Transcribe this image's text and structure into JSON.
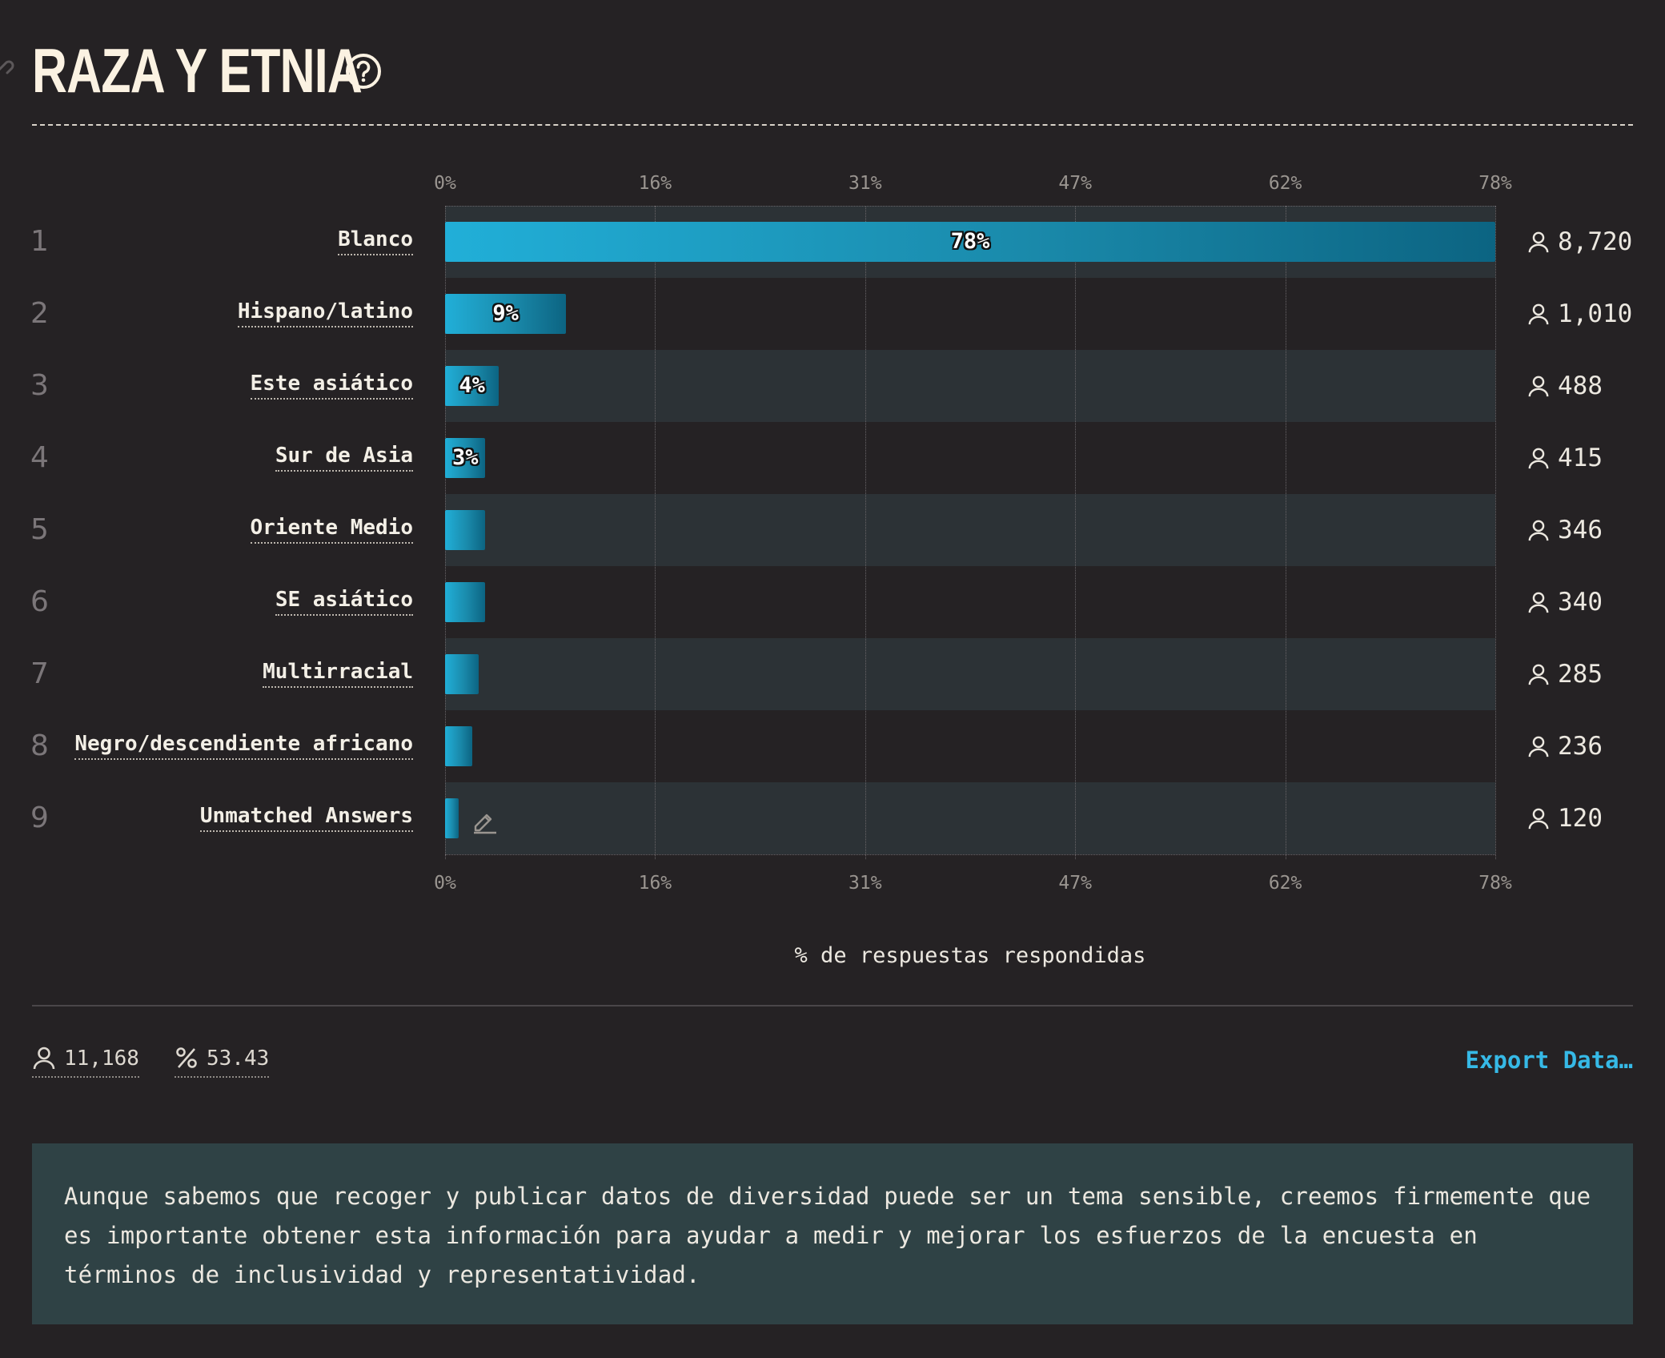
{
  "section": {
    "title": "RAZA Y ETNIA"
  },
  "chart_data": {
    "type": "bar",
    "orientation": "horizontal",
    "categories": [
      "Blanco",
      "Hispano/latino",
      "Este asiático",
      "Sur de Asia",
      "Oriente Medio",
      "SE asiático",
      "Multirracial",
      "Negro/descendiente africano",
      "Unmatched Answers"
    ],
    "values": [
      78,
      9,
      4,
      3,
      3,
      3,
      2.5,
      2,
      1
    ],
    "counts": [
      "8,720",
      "1,010",
      "488",
      "415",
      "346",
      "340",
      "285",
      "236",
      "120"
    ],
    "ranks": [
      "1",
      "2",
      "3",
      "4",
      "5",
      "6",
      "7",
      "8",
      "9"
    ],
    "bar_labels": [
      "78%",
      "9%",
      "4%",
      "3%",
      "",
      "",
      "",
      "",
      ""
    ],
    "xlim": [
      0,
      78
    ],
    "ticks": [
      "0%",
      "16%",
      "31%",
      "47%",
      "62%",
      "78%"
    ],
    "tick_values": [
      0,
      15.6,
      31.2,
      46.8,
      62.4,
      78
    ],
    "xlabel": "% de respuestas respondidas",
    "colors": {
      "bar_start": "#21afd8",
      "bar_end": "#0c6482",
      "row_band": "#2c3236"
    }
  },
  "footer": {
    "respondents": "11,168",
    "percentage": "53.43",
    "export_label": "Export Data…"
  },
  "note": {
    "text": "Aunque sabemos que recoger y publicar datos de diversidad puede ser un tema sensible, creemos firmemente que es importante obtener esta información para ayudar a medir y mejorar los esfuerzos de la encuesta en términos de inclusividad y representatividad."
  },
  "icons": {
    "title_link": "link-icon",
    "help": "help-icon",
    "count": "user-icon",
    "edit": "pencil-icon",
    "percent": "percent-icon"
  }
}
